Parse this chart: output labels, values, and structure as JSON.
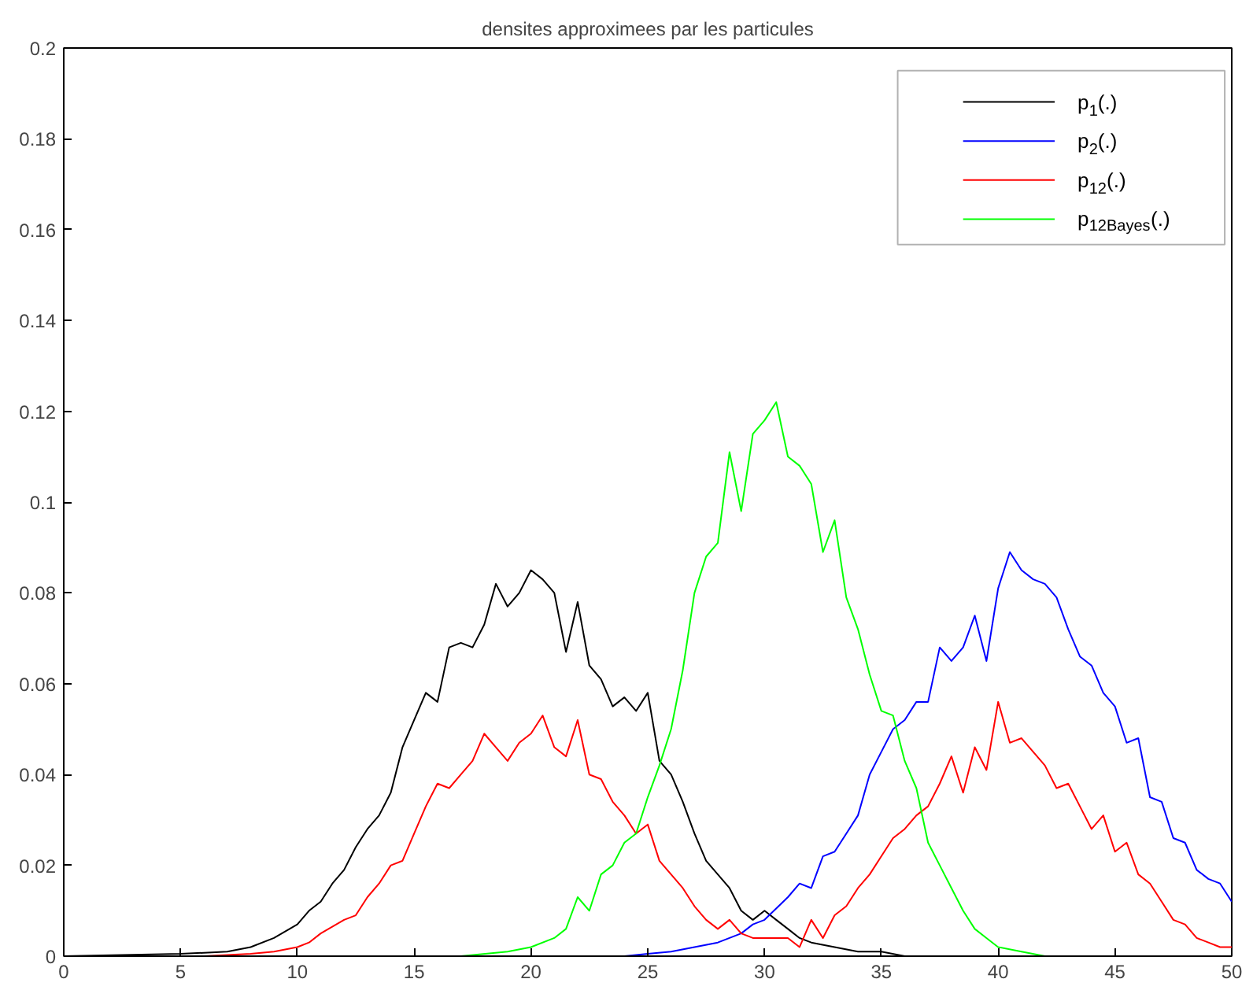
{
  "chart_data": {
    "type": "line",
    "title": "densites approximees par les particules",
    "xlim": [
      0,
      50
    ],
    "ylim": [
      0,
      0.2
    ],
    "xticks": [
      0,
      5,
      10,
      15,
      20,
      25,
      30,
      35,
      40,
      45,
      50
    ],
    "yticks": [
      0,
      0.02,
      0.04,
      0.06,
      0.08,
      {
        "value": 0.1,
        "label": "0.1"
      },
      0.12,
      0.14,
      0.16,
      0.18,
      0.2
    ],
    "grid": false,
    "legend": "top right",
    "marker": "none",
    "line_style": "solid",
    "series": [
      {
        "name": "p$_{1}$(.)",
        "color": "#000000",
        "x": [
          0,
          5,
          7,
          8,
          9,
          10,
          10.5,
          11,
          11.5,
          12,
          12.5,
          13,
          13.5,
          14,
          14.5,
          15,
          15.5,
          16,
          16.5,
          17,
          17.5,
          18,
          18.5,
          19,
          19.5,
          20,
          20.5,
          21,
          21.5,
          22,
          22.5,
          23,
          23.5,
          24,
          24.5,
          25,
          25.5,
          26,
          26.5,
          27,
          27.5,
          28,
          28.5,
          29,
          29.5,
          30,
          30.5,
          31,
          31.5,
          32,
          33,
          34,
          35,
          36,
          50
        ],
        "values": [
          0,
          0.0005,
          0.001,
          0.002,
          0.004,
          0.007,
          0.01,
          0.012,
          0.016,
          0.019,
          0.024,
          0.028,
          0.031,
          0.036,
          0.046,
          0.052,
          0.058,
          0.056,
          0.068,
          0.069,
          0.068,
          0.073,
          0.082,
          0.077,
          0.08,
          0.085,
          0.083,
          0.08,
          0.067,
          0.078,
          0.064,
          0.061,
          0.055,
          0.057,
          0.054,
          0.058,
          0.043,
          0.04,
          0.034,
          0.027,
          0.021,
          0.018,
          0.015,
          0.01,
          0.008,
          0.01,
          0.008,
          0.006,
          0.004,
          0.003,
          0.002,
          0.001,
          0.001,
          0,
          0
        ]
      },
      {
        "name": "p$_{2}$(.)",
        "color": "#0000ff",
        "x": [
          17,
          24,
          25,
          26,
          27,
          28,
          29,
          29.5,
          30,
          31,
          31.5,
          32,
          32.5,
          33,
          33.5,
          34,
          34.5,
          35,
          35.5,
          36,
          36.5,
          37,
          37.5,
          38,
          38.5,
          39,
          39.5,
          40,
          40.5,
          41,
          41.5,
          42,
          42.5,
          43,
          43.5,
          44,
          44.5,
          45,
          45.5,
          46,
          46.5,
          47,
          47.5,
          48,
          48.5,
          49,
          49.5,
          50
        ],
        "values": [
          0,
          0,
          0.0005,
          0.001,
          0.002,
          0.003,
          0.005,
          0.007,
          0.008,
          0.013,
          0.016,
          0.015,
          0.022,
          0.023,
          0.027,
          0.031,
          0.04,
          0.045,
          0.05,
          0.052,
          0.056,
          0.056,
          0.068,
          0.065,
          0.068,
          0.075,
          0.065,
          0.081,
          0.089,
          0.085,
          0.083,
          0.082,
          0.079,
          0.072,
          0.066,
          0.064,
          0.058,
          0.055,
          0.047,
          0.048,
          0.035,
          0.034,
          0.026,
          0.025,
          0.019,
          0.017,
          0.016,
          0.012
        ]
      },
      {
        "name": "p$_{12}$(.)",
        "color": "#ff0000",
        "x": [
          6,
          8,
          9,
          10,
          10.5,
          11,
          12,
          12.5,
          13,
          13.5,
          14,
          14.5,
          15,
          15.5,
          16,
          16.5,
          17,
          17.5,
          18,
          18.5,
          19,
          19.5,
          20,
          20.5,
          21,
          21.5,
          22,
          22.5,
          23,
          23.5,
          24,
          24.5,
          25,
          25.5,
          26,
          26.5,
          27,
          27.5,
          28,
          28.5,
          29,
          29.5,
          30,
          31,
          31.5,
          32,
          32.5,
          33,
          33.5,
          34,
          34.5,
          35,
          35.5,
          36,
          36.5,
          37,
          37.5,
          38,
          38.5,
          39,
          39.5,
          40,
          40.5,
          41,
          41.5,
          42,
          42.5,
          43,
          43.5,
          44,
          44.5,
          45,
          45.5,
          46,
          46.5,
          47,
          47.5,
          48,
          48.5,
          49,
          49.5,
          50
        ],
        "values": [
          0,
          0.0005,
          0.001,
          0.002,
          0.003,
          0.005,
          0.008,
          0.009,
          0.013,
          0.016,
          0.02,
          0.021,
          0.027,
          0.033,
          0.038,
          0.037,
          0.04,
          0.043,
          0.049,
          0.046,
          0.043,
          0.047,
          0.049,
          0.053,
          0.046,
          0.044,
          0.052,
          0.04,
          0.039,
          0.034,
          0.031,
          0.027,
          0.029,
          0.021,
          0.018,
          0.015,
          0.011,
          0.008,
          0.006,
          0.008,
          0.005,
          0.004,
          0.004,
          0.004,
          0.002,
          0.008,
          0.004,
          0.009,
          0.011,
          0.015,
          0.018,
          0.022,
          0.026,
          0.028,
          0.031,
          0.033,
          0.038,
          0.044,
          0.036,
          0.046,
          0.041,
          0.056,
          0.047,
          0.048,
          0.045,
          0.042,
          0.037,
          0.038,
          0.033,
          0.028,
          0.031,
          0.023,
          0.025,
          0.018,
          0.016,
          0.012,
          0.008,
          0.007,
          0.004,
          0.003,
          0.002,
          0.002
        ]
      },
      {
        "name": "p$_{12Bayes}$(.)",
        "color": "#00ff00",
        "x": [
          17,
          19,
          20,
          21,
          21.5,
          22,
          22.5,
          23,
          23.5,
          24,
          24.5,
          25,
          25.5,
          26,
          26.5,
          27,
          27.5,
          28,
          28.5,
          29,
          29.5,
          30,
          30.5,
          31,
          31.5,
          32,
          32.5,
          33,
          33.5,
          34,
          34.5,
          35,
          35.5,
          36,
          36.5,
          37,
          37.5,
          38,
          38.5,
          39,
          39.5,
          40,
          41,
          42
        ],
        "values": [
          0,
          0.001,
          0.002,
          0.004,
          0.006,
          0.013,
          0.01,
          0.018,
          0.02,
          0.025,
          0.027,
          0.035,
          0.042,
          0.05,
          0.063,
          0.08,
          0.088,
          0.091,
          0.111,
          0.098,
          0.115,
          0.118,
          0.122,
          0.11,
          0.108,
          0.104,
          0.089,
          0.096,
          0.079,
          0.072,
          0.062,
          0.054,
          0.053,
          0.043,
          0.037,
          0.025,
          0.02,
          0.015,
          0.01,
          0.006,
          0.004,
          0.002,
          0.001,
          0
        ]
      }
    ]
  }
}
